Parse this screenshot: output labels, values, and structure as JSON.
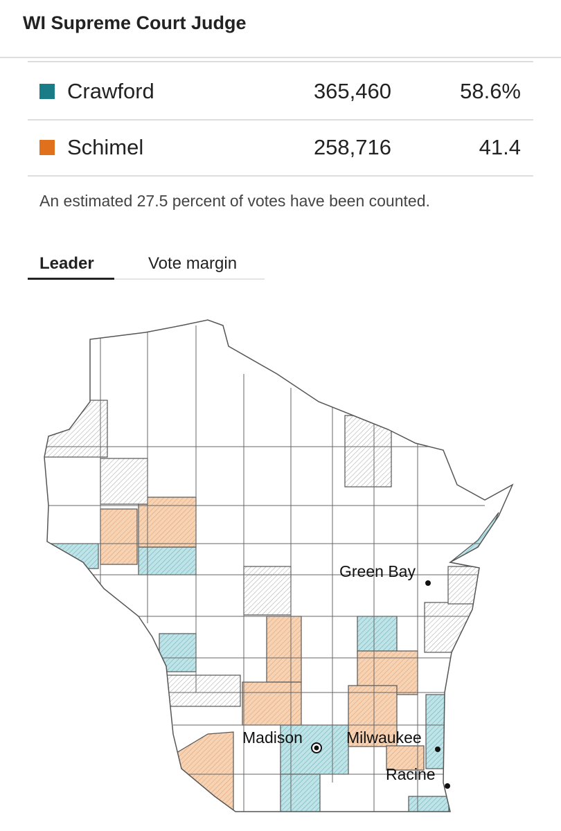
{
  "header": {
    "title": "WI Supreme Court Judge"
  },
  "results": [
    {
      "name": "Crawford",
      "votes": "365,460",
      "pct": "58.6%",
      "color": "#1a7c86"
    },
    {
      "name": "Schimel",
      "votes": "258,716",
      "pct": "41.4",
      "color": "#e0701c"
    }
  ],
  "note": "An estimated 27.5 percent of votes have been counted.",
  "tabs": [
    "Leader",
    "Vote margin"
  ],
  "map": {
    "cities": [
      "Green Bay",
      "Madison",
      "Milwaukee",
      "Racine"
    ]
  }
}
